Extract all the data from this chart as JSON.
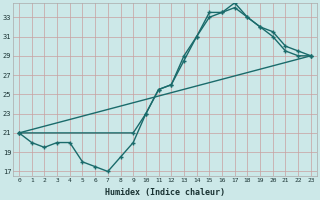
{
  "xlabel": "Humidex (Indice chaleur)",
  "bg_color": "#cce8e8",
  "line_color": "#1a6b6b",
  "grid_color": "#b0d4d4",
  "xlim": [
    -0.5,
    23.5
  ],
  "ylim": [
    16.5,
    34.5
  ],
  "xticks": [
    0,
    1,
    2,
    3,
    4,
    5,
    6,
    7,
    8,
    9,
    10,
    11,
    12,
    13,
    14,
    15,
    16,
    17,
    18,
    19,
    20,
    21,
    22,
    23
  ],
  "yticks": [
    17,
    19,
    21,
    23,
    25,
    27,
    29,
    31,
    33
  ],
  "line1_x": [
    0,
    1,
    2,
    3,
    4,
    5,
    6,
    7,
    8,
    9,
    10,
    11,
    12,
    13,
    14,
    15,
    16,
    17,
    18,
    19,
    20,
    21,
    22,
    23
  ],
  "line1_y": [
    21,
    20,
    19.5,
    20,
    20,
    18,
    17.5,
    17,
    18.5,
    20,
    23,
    25.5,
    26,
    28.5,
    31,
    33,
    33.5,
    34,
    33,
    32,
    31.5,
    30,
    29.5,
    29
  ],
  "line2_x": [
    0,
    9,
    10,
    11,
    12,
    13,
    14,
    15,
    16,
    17,
    18,
    19,
    20,
    21,
    22,
    23
  ],
  "line2_y": [
    21,
    21,
    23,
    25.5,
    26,
    29,
    31,
    33.5,
    33.5,
    34.5,
    33,
    32,
    31,
    29.5,
    29,
    29
  ],
  "line3_x": [
    0,
    23
  ],
  "line3_y": [
    21,
    29
  ],
  "marker_size": 3.5,
  "linewidth": 1.0
}
